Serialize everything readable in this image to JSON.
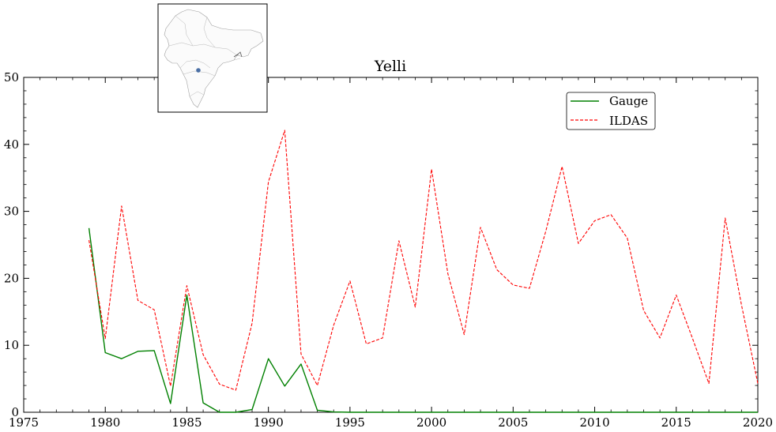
{
  "chart_data": {
    "type": "line",
    "title": "Yelli",
    "xlabel": "",
    "ylabel": "",
    "xlim": [
      1975,
      2020
    ],
    "ylim": [
      0,
      50
    ],
    "xticks": [
      1975,
      1980,
      1985,
      1990,
      1995,
      2000,
      2005,
      2010,
      2015,
      2020
    ],
    "yticks": [
      0,
      10,
      20,
      30,
      40,
      50
    ],
    "grid": false,
    "legend_position": "top-right",
    "series": [
      {
        "name": "Gauge",
        "color": "#008000",
        "style": "solid",
        "x": [
          1979,
          1980,
          1981,
          1982,
          1983,
          1984,
          1985,
          1986,
          1987,
          1988,
          1989,
          1990,
          1991,
          1992,
          1993,
          1994,
          1995,
          1996,
          1997,
          1998,
          1999,
          2000,
          2001,
          2002,
          2003,
          2004,
          2005,
          2006,
          2007,
          2008,
          2009,
          2010,
          2011,
          2012,
          2013,
          2014,
          2015,
          2016,
          2017,
          2018,
          2019,
          2020
        ],
        "values": [
          27.5,
          8.9,
          8.0,
          9.1,
          9.2,
          1.3,
          17.5,
          1.4,
          0.0,
          0.0,
          0.4,
          8.0,
          3.9,
          7.2,
          0.3,
          0.05,
          0.0,
          0.0,
          0.0,
          0.0,
          0.0,
          0.0,
          0.0,
          0.0,
          0.0,
          0.0,
          0.0,
          0.0,
          0.0,
          0.0,
          0.0,
          0.0,
          0.0,
          0.0,
          0.0,
          0.0,
          0.0,
          0.0,
          0.0,
          0.0,
          0.0,
          0.0
        ]
      },
      {
        "name": "ILDAS",
        "color": "#ff0000",
        "style": "dashed",
        "x": [
          1979,
          1980,
          1981,
          1982,
          1983,
          1984,
          1985,
          1986,
          1987,
          1988,
          1989,
          1990,
          1991,
          1992,
          1993,
          1994,
          1995,
          1996,
          1997,
          1998,
          1999,
          2000,
          2001,
          2002,
          2003,
          2004,
          2005,
          2006,
          2007,
          2008,
          2009,
          2010,
          2011,
          2012,
          2013,
          2014,
          2015,
          2016,
          2017,
          2018,
          2019,
          2020
        ],
        "values": [
          25.7,
          11.0,
          30.8,
          16.7,
          15.3,
          3.9,
          18.9,
          8.6,
          4.2,
          3.3,
          13.3,
          34.4,
          42.1,
          8.7,
          4.0,
          13.0,
          19.6,
          10.2,
          11.1,
          25.6,
          15.7,
          36.3,
          20.7,
          11.6,
          27.6,
          21.3,
          19.0,
          18.5,
          27.0,
          36.7,
          25.2,
          28.6,
          29.5,
          26.0,
          15.2,
          11.1,
          17.5,
          11.0,
          4.3,
          29.0,
          16.0,
          4.3
        ]
      }
    ],
    "inset_map": {
      "description_label": "",
      "marker_color": "#4a6fa5"
    }
  }
}
